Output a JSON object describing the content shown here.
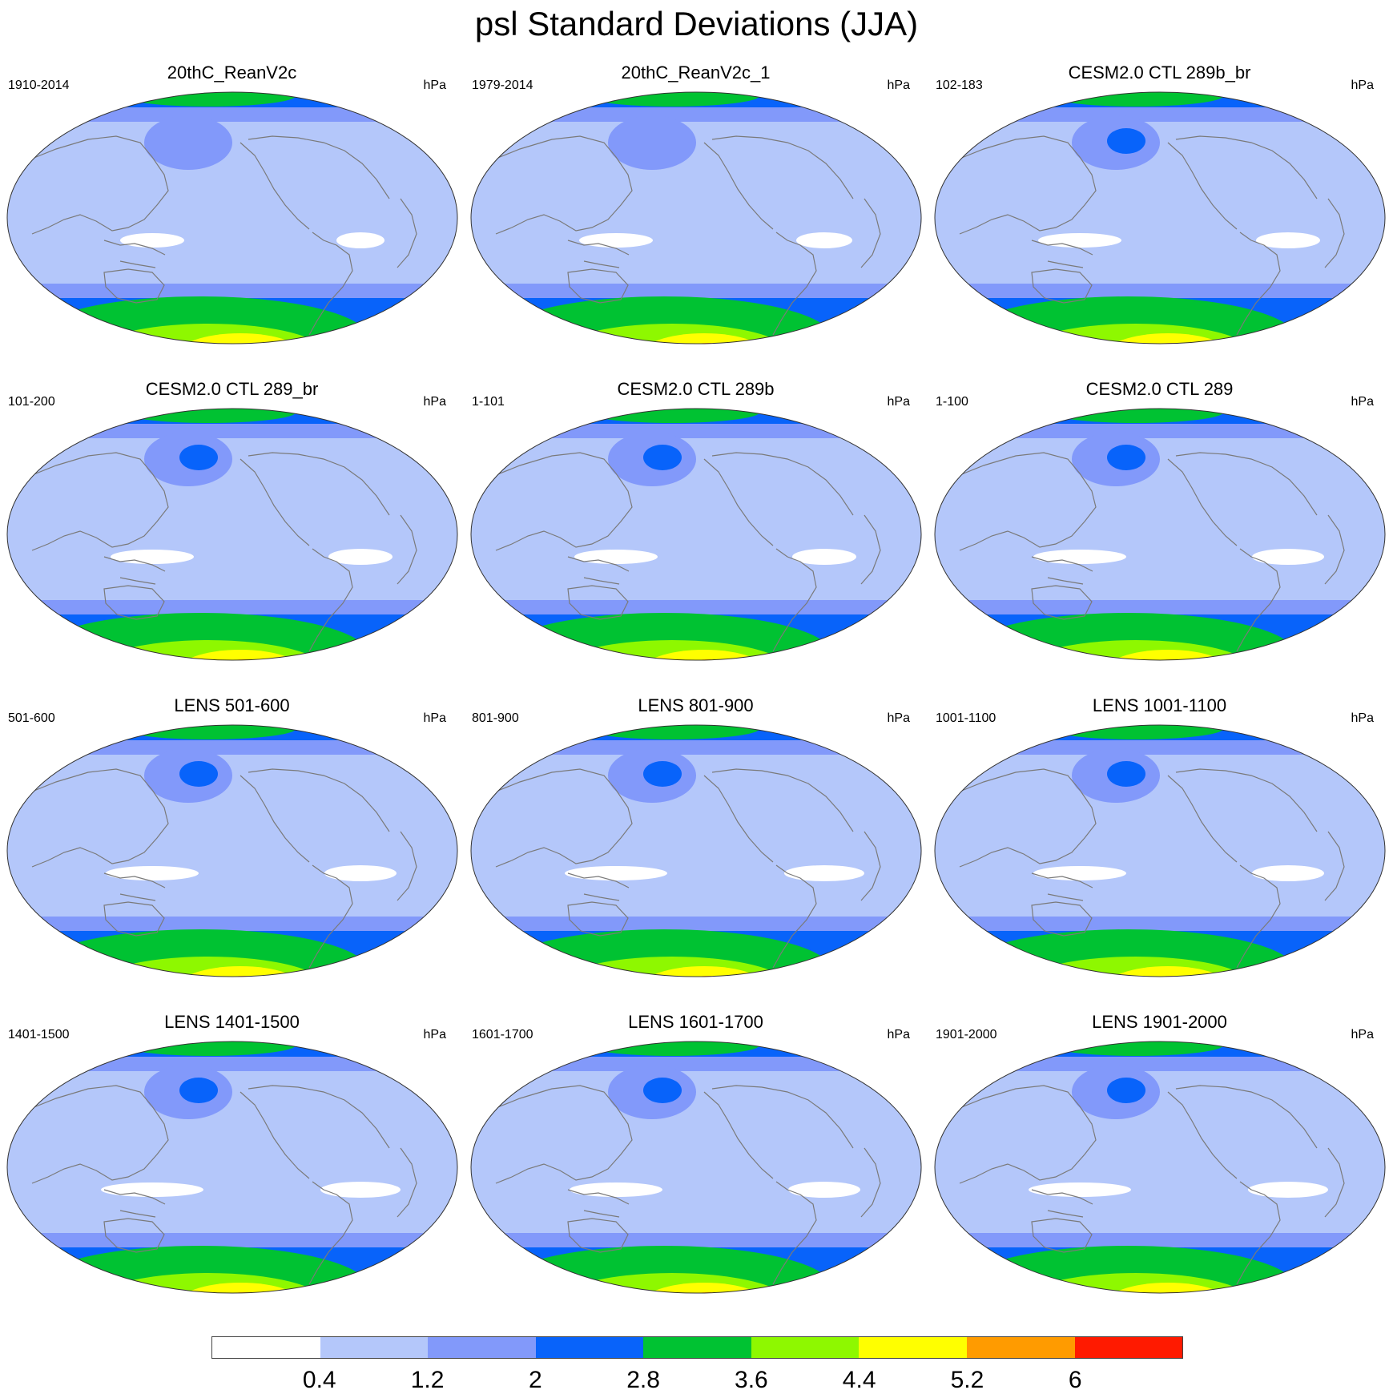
{
  "title": "psl Standard Deviations (JJA)",
  "unit_label": "hPa",
  "colors": {
    "levels": [
      "#ffffff",
      "#b4c7fa",
      "#8299fa",
      "#0863fa",
      "#00c232",
      "#8ef800",
      "#ffff00",
      "#ff9b00",
      "#ff1a00"
    ],
    "coastline": "#7a7a7a"
  },
  "colorbar": {
    "thresholds": [
      "0.4",
      "1.2",
      "2",
      "2.8",
      "3.6",
      "4.4",
      "5.2",
      "6"
    ]
  },
  "panels": [
    {
      "title": "20thC_ReanV2c",
      "years": "1910-2014",
      "anomaly": 0
    },
    {
      "title": "20thC_ReanV2c_1",
      "years": "1979-2014",
      "anomaly": 1
    },
    {
      "title": "CESM2.0 CTL 289b_br",
      "years": "102-183",
      "anomaly": 2
    },
    {
      "title": "CESM2.0 CTL 289_br",
      "years": "101-200",
      "anomaly": 2
    },
    {
      "title": "CESM2.0 CTL 289b",
      "years": "1-101",
      "anomaly": 2
    },
    {
      "title": "CESM2.0 CTL 289",
      "years": "1-100",
      "anomaly": 3
    },
    {
      "title": "LENS 501-600",
      "years": "501-600",
      "anomaly": 3
    },
    {
      "title": "LENS 801-900",
      "years": "801-900",
      "anomaly": 4
    },
    {
      "title": "LENS 1001-1100",
      "years": "1001-1100",
      "anomaly": 3
    },
    {
      "title": "LENS 1401-1500",
      "years": "1401-1500",
      "anomaly": 4
    },
    {
      "title": "LENS 1601-1700",
      "years": "1601-1700",
      "anomaly": 3
    },
    {
      "title": "LENS 1901-2000",
      "years": "1901-2000",
      "anomaly": 4
    }
  ]
}
